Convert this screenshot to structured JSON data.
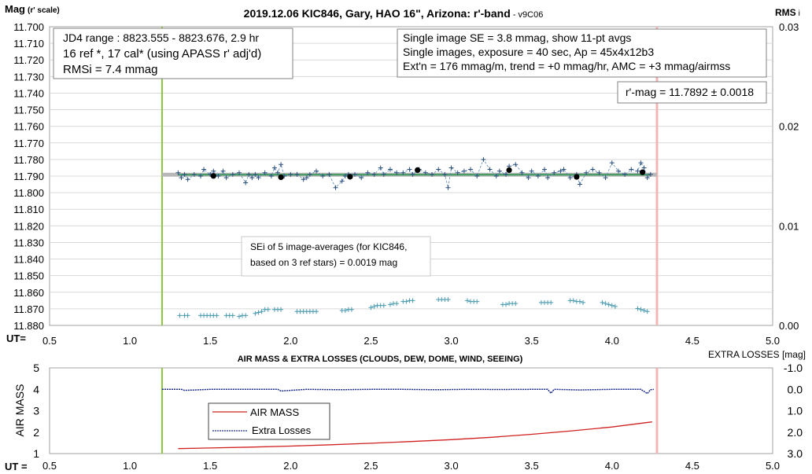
{
  "chart_data": [
    {
      "type": "scatter",
      "title": "2019.12.06 KIC846, Gary, HAO 16\", Arizona: r'-band",
      "title_suffix": " - v9C06",
      "ylabel_main": "Mag",
      "ylabel_sub": "(r' scale)",
      "y2label_main": "RMS",
      "y2label_sub": "i",
      "xlabel": "UT=",
      "xlim": [
        0.5,
        5.0
      ],
      "xticks": [
        "0.5",
        "1.0",
        "1.5",
        "2.0",
        "2.5",
        "3.0",
        "3.5",
        "4.0",
        "4.5",
        "5.0"
      ],
      "ylim": [
        11.7,
        11.88
      ],
      "yticks": [
        "11.700",
        "11.710",
        "11.720",
        "11.730",
        "11.740",
        "11.750",
        "11.760",
        "11.770",
        "11.780",
        "11.790",
        "11.800",
        "11.810",
        "11.820",
        "11.830",
        "11.840",
        "11.850",
        "11.860",
        "11.870",
        "11.880"
      ],
      "y2lim": [
        0.0,
        0.03
      ],
      "y2ticks": [
        "0.03",
        "0.02",
        "0.01",
        "0.00"
      ],
      "grid": true,
      "vertical_lines": {
        "start_ut": 1.2,
        "end_ut": 4.28
      },
      "info_box_left": [
        "JD4 range : 8823.555 - 8823.676,  2.9  hr",
        "16 ref *, 17 cal* (using APASS r' adj'd)",
        "RMSi = 7.4 mmag"
      ],
      "info_box_right": [
        "Single image SE = 3.8 mmag, show  11-pt avgs",
        "Single images, exposure = 40 sec, Ap = 45x4x12b3",
        "Ext'n = 176 mmag/m, trend =  +0 mmag/hr, AMC = +3 mmag/airmss"
      ],
      "result_box": "r'-mag = 11.7892 ± 0.0018",
      "sei_box": [
        "SEi of 5 image-averages (for KIC846,",
        "based on 3 ref stars) = 0.0019 mag"
      ],
      "mean_mag": 11.7892,
      "series": [
        {
          "name": "single images",
          "x": [
            1.3,
            1.32,
            1.34,
            1.36,
            1.4,
            1.44,
            1.46,
            1.5,
            1.52,
            1.55,
            1.58,
            1.6,
            1.64,
            1.68,
            1.72,
            1.74,
            1.76,
            1.78,
            1.8,
            1.84,
            1.88,
            1.9,
            1.92,
            1.94,
            1.96,
            2.0,
            2.04,
            2.08,
            2.1,
            2.12,
            2.16,
            2.2,
            2.24,
            2.28,
            2.32,
            2.34,
            2.36,
            2.4,
            2.44,
            2.48,
            2.52,
            2.56,
            2.58,
            2.62,
            2.66,
            2.7,
            2.74,
            2.76,
            2.8,
            2.84,
            2.88,
            2.92,
            2.96,
            2.98,
            3.0,
            3.04,
            3.08,
            3.12,
            3.16,
            3.2,
            3.24,
            3.28,
            3.3,
            3.34,
            3.36,
            3.4,
            3.44,
            3.48,
            3.5,
            3.54,
            3.58,
            3.6,
            3.64,
            3.68,
            3.7,
            3.74,
            3.78,
            3.8,
            3.84,
            3.88,
            3.92,
            3.96,
            4.0,
            4.04,
            4.08,
            4.12,
            4.16,
            4.18,
            4.2,
            4.22,
            4.24
          ],
          "y": [
            11.788,
            11.791,
            11.789,
            11.792,
            11.789,
            11.79,
            11.786,
            11.789,
            11.787,
            11.79,
            11.787,
            11.791,
            11.789,
            11.788,
            11.794,
            11.789,
            11.791,
            11.789,
            11.791,
            11.788,
            11.79,
            11.785,
            11.788,
            11.783,
            11.79,
            11.789,
            11.789,
            11.792,
            11.791,
            11.789,
            11.787,
            11.79,
            11.789,
            11.797,
            11.793,
            11.79,
            11.789,
            11.789,
            11.791,
            11.788,
            11.789,
            11.785,
            11.789,
            11.786,
            11.788,
            11.788,
            11.786,
            11.789,
            11.786,
            11.788,
            11.789,
            11.786,
            11.789,
            11.797,
            11.785,
            11.788,
            11.787,
            11.786,
            11.79,
            11.78,
            11.786,
            11.79,
            11.787,
            11.789,
            11.784,
            11.783,
            11.788,
            11.791,
            11.787,
            11.79,
            11.786,
            11.791,
            11.788,
            11.787,
            11.786,
            11.791,
            11.789,
            11.795,
            11.788,
            11.786,
            11.788,
            11.791,
            11.782,
            11.787,
            11.789,
            11.786,
            11.787,
            11.782,
            11.785,
            11.791,
            11.789
          ]
        },
        {
          "name": "11-pt avgs",
          "x": [
            1.52,
            1.94,
            2.37,
            2.79,
            3.36,
            3.78,
            4.19
          ],
          "y": [
            11.7899,
            11.7907,
            11.7904,
            11.7864,
            11.7864,
            11.7905,
            11.7877
          ]
        },
        {
          "name": "RMSi",
          "x": [
            1.31,
            1.34,
            1.36,
            1.44,
            1.46,
            1.48,
            1.5,
            1.52,
            1.54,
            1.6,
            1.62,
            1.64,
            1.68,
            1.7,
            1.72,
            1.78,
            1.8,
            1.82,
            1.84,
            1.86,
            1.9,
            1.92,
            1.94,
            2.04,
            2.06,
            2.08,
            2.1,
            2.12,
            2.14,
            2.16,
            2.32,
            2.34,
            2.36,
            2.38,
            2.5,
            2.52,
            2.54,
            2.56,
            2.58,
            2.62,
            2.64,
            2.66,
            2.7,
            2.72,
            2.74,
            2.76,
            2.92,
            2.94,
            2.96,
            2.98,
            3.1,
            3.12,
            3.14,
            3.16,
            3.32,
            3.34,
            3.36,
            3.38,
            3.4,
            3.56,
            3.58,
            3.6,
            3.62,
            3.74,
            3.76,
            3.78,
            3.8,
            3.82,
            3.94,
            3.96,
            3.98,
            4.0,
            4.02,
            4.16,
            4.18,
            4.2,
            4.22
          ],
          "y": [
            0.001,
            0.001,
            0.001,
            0.001,
            0.001,
            0.001,
            0.001,
            0.001,
            0.001,
            0.001,
            0.001,
            0.001,
            0.0009,
            0.001,
            0.001,
            0.0012,
            0.0013,
            0.0014,
            0.0016,
            0.0016,
            0.0016,
            0.0016,
            0.0016,
            0.0014,
            0.0014,
            0.0014,
            0.0014,
            0.0014,
            0.0014,
            0.0014,
            0.0015,
            0.0015,
            0.0016,
            0.0016,
            0.0018,
            0.0019,
            0.002,
            0.002,
            0.002,
            0.0021,
            0.0022,
            0.0022,
            0.0024,
            0.0024,
            0.0025,
            0.0025,
            0.0026,
            0.0026,
            0.0026,
            0.0026,
            0.0025,
            0.0024,
            0.0024,
            0.0024,
            0.0021,
            0.0021,
            0.0022,
            0.0022,
            0.0022,
            0.0023,
            0.0023,
            0.0023,
            0.0023,
            0.0025,
            0.0025,
            0.0024,
            0.0024,
            0.0023,
            0.0023,
            0.0022,
            0.0021,
            0.002,
            0.0019,
            0.0017,
            0.0016,
            0.0015,
            0.0014
          ]
        }
      ]
    },
    {
      "type": "line",
      "title": "AIR MASS & EXTRA LOSSES (CLOUDS, DEW, DOME, WIND, SEEING)",
      "ylabel": "AIR MASS",
      "y2label": "EXTRA LOSSES [mag]",
      "xlabel": "UT =",
      "xlim": [
        0.5,
        5.0
      ],
      "xticks": [
        "0.5",
        "1.0",
        "1.5",
        "2.0",
        "2.5",
        "3.0",
        "3.5",
        "4.0",
        "4.5",
        "5.0"
      ],
      "ylim": [
        1,
        5
      ],
      "yticks": [
        "5",
        "4",
        "3",
        "2",
        "1"
      ],
      "y2lim": [
        -1.0,
        3.0
      ],
      "y2ticks": [
        "-1.0",
        "0.0",
        "1.0",
        "2.0",
        "3.0"
      ],
      "vertical_lines": {
        "start_ut": 1.2,
        "end_ut": 4.28
      },
      "legend": [
        "AIR MASS",
        "Extra Losses"
      ],
      "series": [
        {
          "name": "AIR MASS",
          "color": "#d02020",
          "x": [
            1.3,
            1.5,
            1.75,
            2.0,
            2.25,
            2.5,
            2.75,
            3.0,
            3.25,
            3.5,
            3.75,
            4.0,
            4.25
          ],
          "y": [
            1.23,
            1.26,
            1.3,
            1.35,
            1.41,
            1.48,
            1.56,
            1.65,
            1.76,
            1.9,
            2.06,
            2.24,
            2.48
          ]
        },
        {
          "name": "Extra Losses",
          "color": "#1a2a8a",
          "x": [
            1.2,
            1.32,
            1.34,
            1.5,
            1.7,
            1.92,
            1.94,
            2.1,
            2.3,
            2.5,
            2.7,
            2.9,
            3.1,
            3.3,
            3.5,
            3.6,
            3.62,
            3.64,
            3.8,
            4.0,
            4.18,
            4.22,
            4.24,
            4.26
          ],
          "y": [
            0.0,
            0.0,
            0.05,
            0.0,
            0.0,
            0.0,
            0.08,
            0.0,
            0.02,
            0.0,
            0.0,
            0.02,
            0.0,
            0.01,
            0.0,
            0.0,
            0.18,
            0.0,
            0.03,
            0.0,
            0.0,
            0.2,
            0.02,
            0.0
          ]
        }
      ]
    }
  ]
}
